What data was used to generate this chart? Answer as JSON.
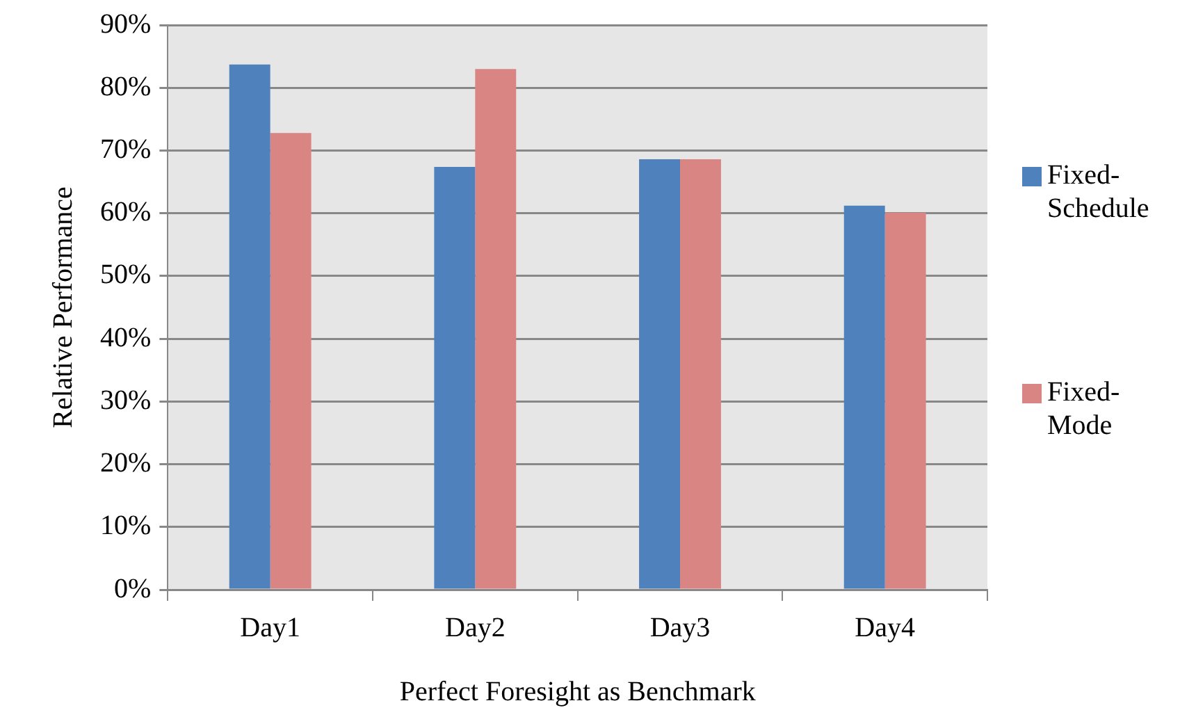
{
  "chart_data": {
    "type": "bar",
    "xlabel": "Perfect Foresight as Benchmark",
    "ylabel": "Relative Performance",
    "categories": [
      "Day1",
      "Day2",
      "Day3",
      "Day4"
    ],
    "series": [
      {
        "name": "Fixed-Schedule",
        "color": "#4f81bd",
        "values": [
          83.7,
          67.4,
          68.6,
          61.2
        ]
      },
      {
        "name": "Fixed-Mode",
        "color": "#d98583",
        "values": [
          72.8,
          83.0,
          68.6,
          60.1
        ]
      }
    ],
    "ylim": [
      0,
      90
    ],
    "yticks": [
      {
        "value": 0,
        "label": "0%"
      },
      {
        "value": 10,
        "label": "10%"
      },
      {
        "value": 20,
        "label": "20%"
      },
      {
        "value": 30,
        "label": "30%"
      },
      {
        "value": 40,
        "label": "40%"
      },
      {
        "value": 50,
        "label": "50%"
      },
      {
        "value": 60,
        "label": "60%"
      },
      {
        "value": 70,
        "label": "70%"
      },
      {
        "value": 80,
        "label": "80%"
      },
      {
        "value": 90,
        "label": "90%"
      }
    ],
    "grid": "y",
    "legend": "right"
  }
}
